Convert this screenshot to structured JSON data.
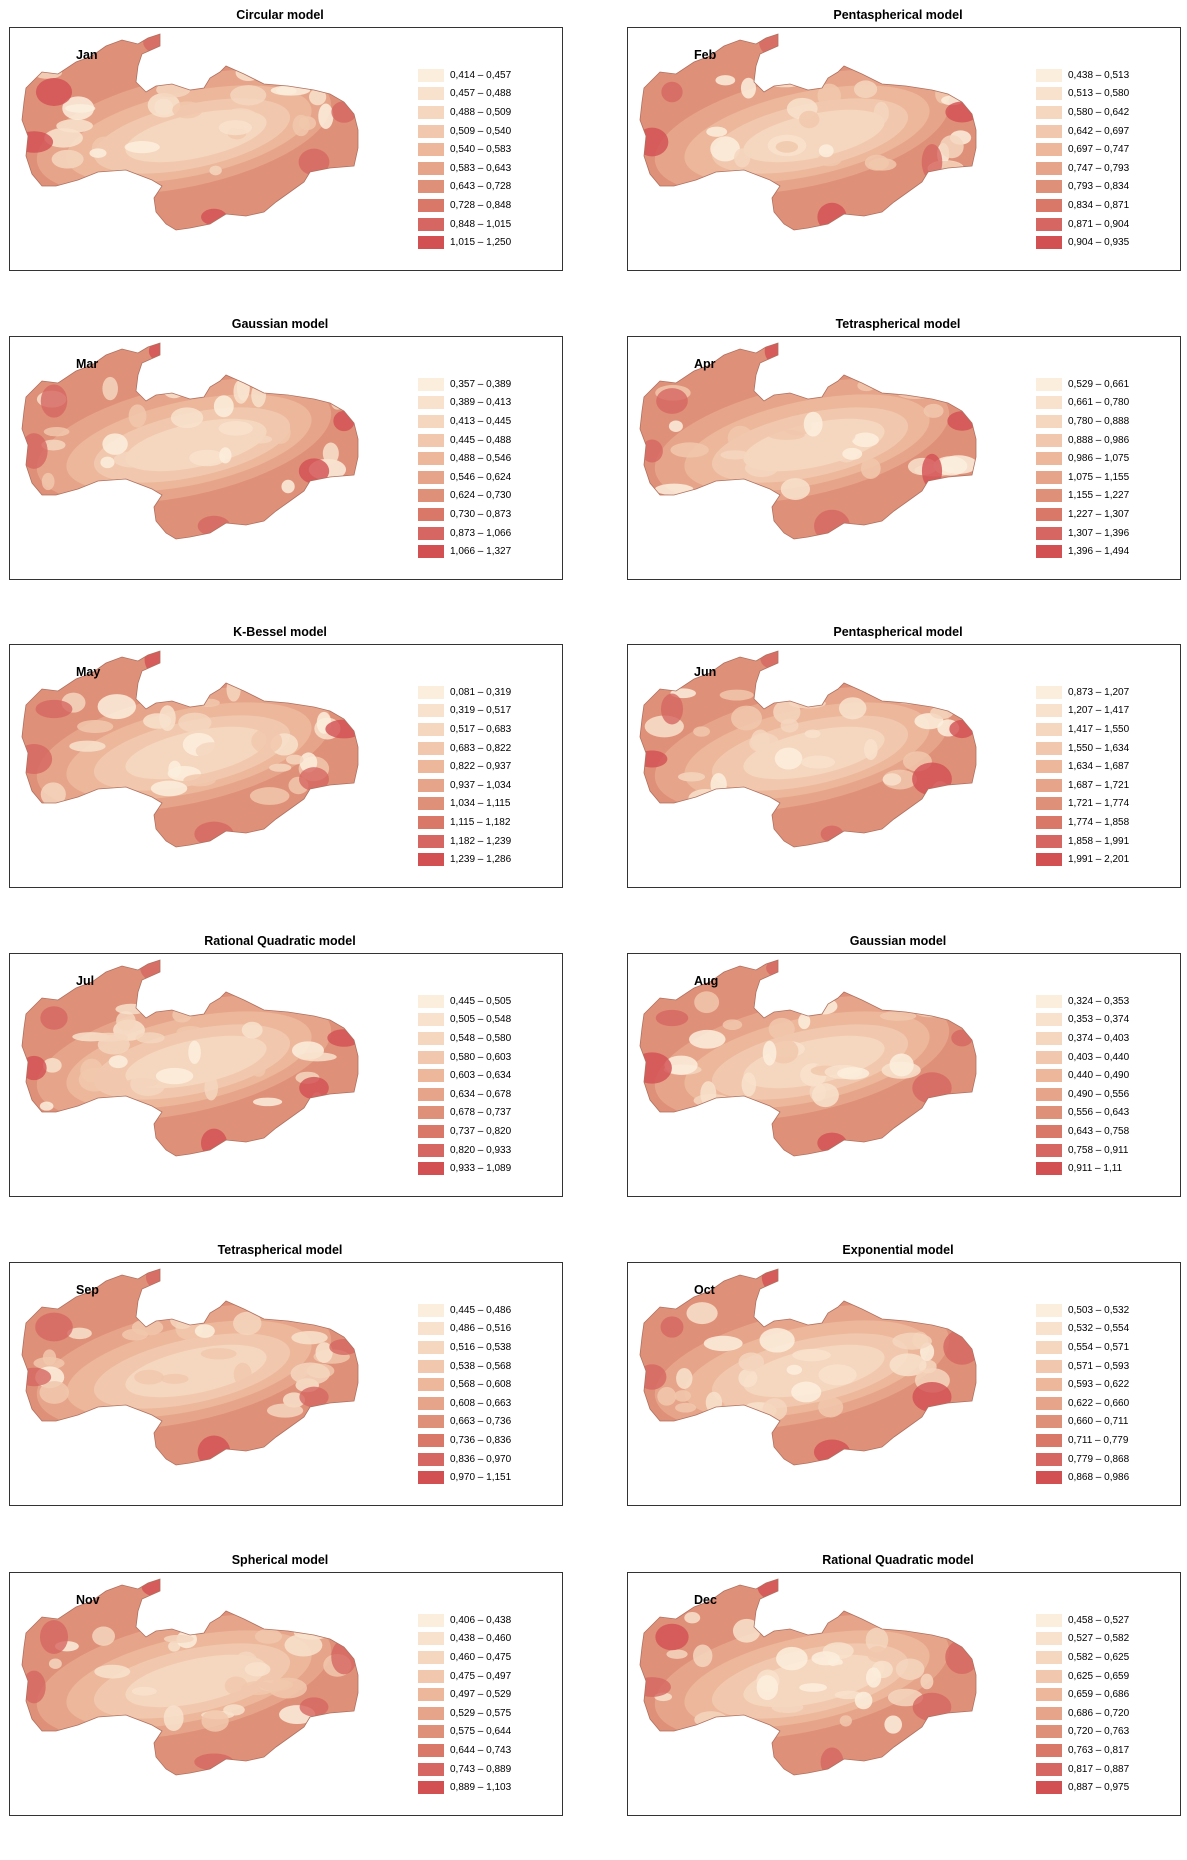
{
  "colors": [
    "#fbeedd",
    "#f8e2cd",
    "#f5d6be",
    "#f1c8ad",
    "#ecb79b",
    "#e6a58a",
    "#df9079",
    "#d97868",
    "#d66662",
    "#d24f52"
  ],
  "panels": [
    {
      "title": "Circular model",
      "month": "Jan",
      "legend": [
        "0,414 – 0,457",
        "0,457 – 0,488",
        "0,488 – 0,509",
        "0,509 – 0,540",
        "0,540 – 0,583",
        "0,583 – 0,643",
        "0,643 – 0,728",
        "0,728 – 0,848",
        "0,848 – 1,015",
        "1,015 – 1,250"
      ]
    },
    {
      "title": "Pentaspherical model",
      "month": "Feb",
      "legend": [
        "0,438 – 0,513",
        "0,513 – 0,580",
        "0,580 – 0,642",
        "0,642 – 0,697",
        "0,697 – 0,747",
        "0,747 – 0,793",
        "0,793 – 0,834",
        "0,834 – 0,871",
        "0,871 – 0,904",
        "0,904 – 0,935"
      ]
    },
    {
      "title": "Gaussian model",
      "month": "Mar",
      "legend": [
        "0,357 – 0,389",
        "0,389 – 0,413",
        "0,413 – 0,445",
        "0,445 – 0,488",
        "0,488 – 0,546",
        "0,546 – 0,624",
        "0,624 – 0,730",
        "0,730 – 0,873",
        "0,873 – 1,066",
        "1,066 – 1,327"
      ]
    },
    {
      "title": "Tetraspherical model",
      "month": "Apr",
      "legend": [
        "0,529 – 0,661",
        "0,661 – 0,780",
        "0,780 – 0,888",
        "0,888 – 0,986",
        "0,986 – 1,075",
        "1,075 – 1,155",
        "1,155 – 1,227",
        "1,227 – 1,307",
        "1,307 – 1,396",
        "1,396 – 1,494"
      ]
    },
    {
      "title": "K-Bessel model",
      "month": "May",
      "legend": [
        "0,081 – 0,319",
        "0,319 – 0,517",
        "0,517 – 0,683",
        "0,683 – 0,822",
        "0,822 – 0,937",
        "0,937 – 1,034",
        "1,034 – 1,115",
        "1,115 – 1,182",
        "1,182 – 1,239",
        "1,239 – 1,286"
      ]
    },
    {
      "title": "Pentaspherical model",
      "month": "Jun",
      "legend": [
        "0,873 – 1,207",
        "1,207 – 1,417",
        "1,417 – 1,550",
        "1,550 – 1,634",
        "1,634 – 1,687",
        "1,687 – 1,721",
        "1,721 – 1,774",
        "1,774 – 1,858",
        "1,858 – 1,991",
        "1,991 – 2,201"
      ]
    },
    {
      "title": "Rational Quadratic model",
      "month": "Jul",
      "legend": [
        "0,445 – 0,505",
        "0,505 – 0,548",
        "0,548 – 0,580",
        "0,580 – 0,603",
        "0,603 – 0,634",
        "0,634 – 0,678",
        "0,678 – 0,737",
        "0,737 – 0,820",
        "0,820 – 0,933",
        "0,933 – 1,089"
      ]
    },
    {
      "title": "Gaussian model",
      "month": "Aug",
      "legend": [
        "0,324 – 0,353",
        "0,353 – 0,374",
        "0,374 – 0,403",
        "0,403 – 0,440",
        "0,440 – 0,490",
        "0,490 – 0,556",
        "0,556 – 0,643",
        "0,643 – 0,758",
        "0,758 – 0,911",
        "0,911 – 1,11"
      ]
    },
    {
      "title": "Tetraspherical model",
      "month": "Sep",
      "legend": [
        "0,445 – 0,486",
        "0,486 – 0,516",
        "0,516 – 0,538",
        "0,538 – 0,568",
        "0,568 – 0,608",
        "0,608 – 0,663",
        "0,663 – 0,736",
        "0,736 – 0,836",
        "0,836 – 0,970",
        "0,970 – 1,151"
      ]
    },
    {
      "title": "Exponential model",
      "month": "Oct",
      "legend": [
        "0,503 – 0,532",
        "0,532 – 0,554",
        "0,554 – 0,571",
        "0,571 – 0,593",
        "0,593 – 0,622",
        "0,622 – 0,660",
        "0,660 – 0,711",
        "0,711 – 0,779",
        "0,779 – 0,868",
        "0,868 – 0,986"
      ]
    },
    {
      "title": "Spherical model",
      "month": "Nov",
      "legend": [
        "0,406 – 0,438",
        "0,438 – 0,460",
        "0,460 – 0,475",
        "0,475 – 0,497",
        "0,497 – 0,529",
        "0,529 – 0,575",
        "0,575 – 0,644",
        "0,644 – 0,743",
        "0,743 – 0,889",
        "0,889 – 1,103"
      ]
    },
    {
      "title": "Rational Quadratic model",
      "month": "Dec",
      "legend": [
        "0,458 – 0,527",
        "0,527 – 0,582",
        "0,582 – 0,625",
        "0,625 – 0,659",
        "0,659 – 0,686",
        "0,686 – 0,720",
        "0,720 – 0,763",
        "0,763 – 0,817",
        "0,817 – 0,887",
        "0,887 – 0,975"
      ]
    }
  ]
}
